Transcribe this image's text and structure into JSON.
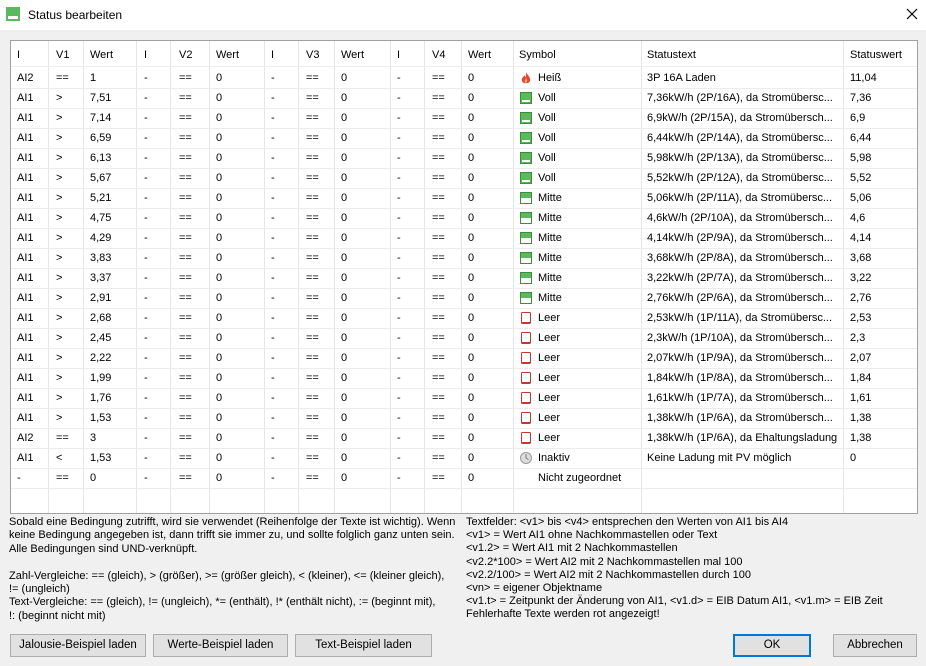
{
  "window": {
    "title": "Status bearbeiten"
  },
  "table": {
    "columns": [
      "I",
      "V1",
      "Wert",
      "I",
      "V2",
      "Wert",
      "I",
      "V3",
      "Wert",
      "I",
      "V4",
      "Wert",
      "Symbol",
      "Statustext",
      "Statuswert"
    ],
    "rows": [
      [
        "AI2",
        "==",
        "1",
        "-",
        "==",
        "0",
        "-",
        "==",
        "0",
        "-",
        "==",
        "0",
        "Heiß",
        "3P 16A Laden",
        "11,04"
      ],
      [
        "AI1",
        ">",
        "7,51",
        "-",
        "==",
        "0",
        "-",
        "==",
        "0",
        "-",
        "==",
        "0",
        "Voll",
        "7,36kW/h (2P/16A), da Stromübersc...",
        "7,36"
      ],
      [
        "AI1",
        ">",
        "7,14",
        "-",
        "==",
        "0",
        "-",
        "==",
        "0",
        "-",
        "==",
        "0",
        "Voll",
        "6,9kW/h (2P/15A), da Stromübersch...",
        "6,9"
      ],
      [
        "AI1",
        ">",
        "6,59",
        "-",
        "==",
        "0",
        "-",
        "==",
        "0",
        "-",
        "==",
        "0",
        "Voll",
        "6,44kW/h (2P/14A), da Stromübersc...",
        "6,44"
      ],
      [
        "AI1",
        ">",
        "6,13",
        "-",
        "==",
        "0",
        "-",
        "==",
        "0",
        "-",
        "==",
        "0",
        "Voll",
        "5,98kW/h (2P/13A), da Stromübersc...",
        "5,98"
      ],
      [
        "AI1",
        ">",
        "5,67",
        "-",
        "==",
        "0",
        "-",
        "==",
        "0",
        "-",
        "==",
        "0",
        "Voll",
        "5,52kW/h (2P/12A), da Stromübersc...",
        "5,52"
      ],
      [
        "AI1",
        ">",
        "5,21",
        "-",
        "==",
        "0",
        "-",
        "==",
        "0",
        "-",
        "==",
        "0",
        "Mitte",
        "5,06kW/h (2P/11A), da Stromübersc...",
        "5,06"
      ],
      [
        "AI1",
        ">",
        "4,75",
        "-",
        "==",
        "0",
        "-",
        "==",
        "0",
        "-",
        "==",
        "0",
        "Mitte",
        "4,6kW/h (2P/10A), da Stromübersch...",
        "4,6"
      ],
      [
        "AI1",
        ">",
        "4,29",
        "-",
        "==",
        "0",
        "-",
        "==",
        "0",
        "-",
        "==",
        "0",
        "Mitte",
        "4,14kW/h (2P/9A), da Stromübersch...",
        "4,14"
      ],
      [
        "AI1",
        ">",
        "3,83",
        "-",
        "==",
        "0",
        "-",
        "==",
        "0",
        "-",
        "==",
        "0",
        "Mitte",
        "3,68kW/h (2P/8A), da Stromübersch...",
        "3,68"
      ],
      [
        "AI1",
        ">",
        "3,37",
        "-",
        "==",
        "0",
        "-",
        "==",
        "0",
        "-",
        "==",
        "0",
        "Mitte",
        "3,22kW/h (2P/7A), da Stromübersch...",
        "3,22"
      ],
      [
        "AI1",
        ">",
        "2,91",
        "-",
        "==",
        "0",
        "-",
        "==",
        "0",
        "-",
        "==",
        "0",
        "Mitte",
        "2,76kW/h (2P/6A), da Stromübersch...",
        "2,76"
      ],
      [
        "AI1",
        ">",
        "2,68",
        "-",
        "==",
        "0",
        "-",
        "==",
        "0",
        "-",
        "==",
        "0",
        "Leer",
        "2,53kW/h (1P/11A), da Stromübersc...",
        "2,53"
      ],
      [
        "AI1",
        ">",
        "2,45",
        "-",
        "==",
        "0",
        "-",
        "==",
        "0",
        "-",
        "==",
        "0",
        "Leer",
        "2,3kW/h (1P/10A), da Stromübersch...",
        "2,3"
      ],
      [
        "AI1",
        ">",
        "2,22",
        "-",
        "==",
        "0",
        "-",
        "==",
        "0",
        "-",
        "==",
        "0",
        "Leer",
        "2,07kW/h (1P/9A), da Stromübersch...",
        "2,07"
      ],
      [
        "AI1",
        ">",
        "1,99",
        "-",
        "==",
        "0",
        "-",
        "==",
        "0",
        "-",
        "==",
        "0",
        "Leer",
        "1,84kW/h (1P/8A), da Stromübersch...",
        "1,84"
      ],
      [
        "AI1",
        ">",
        "1,76",
        "-",
        "==",
        "0",
        "-",
        "==",
        "0",
        "-",
        "==",
        "0",
        "Leer",
        "1,61kW/h (1P/7A), da Stromübersch...",
        "1,61"
      ],
      [
        "AI1",
        ">",
        "1,53",
        "-",
        "==",
        "0",
        "-",
        "==",
        "0",
        "-",
        "==",
        "0",
        "Leer",
        "1,38kW/h (1P/6A), da Stromübersch...",
        "1,38"
      ],
      [
        "AI2",
        "==",
        "3",
        "-",
        "==",
        "0",
        "-",
        "==",
        "0",
        "-",
        "==",
        "0",
        "Leer",
        "1,38kW/h (1P/6A), da Ehaltungsladung",
        "1,38"
      ],
      [
        "AI1",
        "<",
        "1,53",
        "-",
        "==",
        "0",
        "-",
        "==",
        "0",
        "-",
        "==",
        "0",
        "Inaktiv",
        "Keine Ladung mit PV möglich",
        "0"
      ],
      [
        "-",
        "==",
        "0",
        "-",
        "==",
        "0",
        "-",
        "==",
        "0",
        "-",
        "==",
        "0",
        "Nicht zugeordnet",
        null,
        null
      ]
    ]
  },
  "help": {
    "left": [
      [
        "Sobald eine Bedingung zutrifft, wird sie verwendet (Reihenfolge der Texte ist wichtig). Wenn",
        "keine Bedingung angegeben ist, dann trifft sie immer zu, und sollte folglich ganz unten sein.",
        "Alle Bedingungen sind UND-verknüpft."
      ],
      [
        "Zahl-Vergleiche: == (gleich), > (größer), >= (größer gleich), < (kleiner), <= (kleiner gleich),",
        "!= (ungleich)",
        "Text-Vergleiche: == (gleich), != (ungleich), *= (enthält), !* (enthält nicht), := (beginnt mit),",
        "!: (beginnt nicht mit)"
      ]
    ],
    "right": [
      "Textfelder: <v1> bis <v4> entsprechen den Werten von AI1 bis AI4",
      "<v1> = Wert AI1 ohne Nachkommastellen oder Text",
      "<v1.2> = Wert AI1 mit 2 Nachkommastellen",
      "<v2.2*100> = Wert AI2 mit 2 Nachkommastellen mal 100",
      "<v2.2/100> = Wert AI2 mit 2 Nachkommastellen durch 100",
      "<vn> = eigener Objektname",
      "<v1.t> = Zeitpunkt der Änderung von AI1, <v1.d> = EIB Datum AI1, <v1.m> = EIB Zeit",
      "Fehlerhafte Texte werden rot angezeigt!"
    ]
  },
  "buttons": {
    "jalousie": "Jalousie-Beispiel laden",
    "werte": "Werte-Beispiel laden",
    "text": "Text-Beispiel laden",
    "ok": "OK",
    "cancel": "Abbrechen"
  }
}
